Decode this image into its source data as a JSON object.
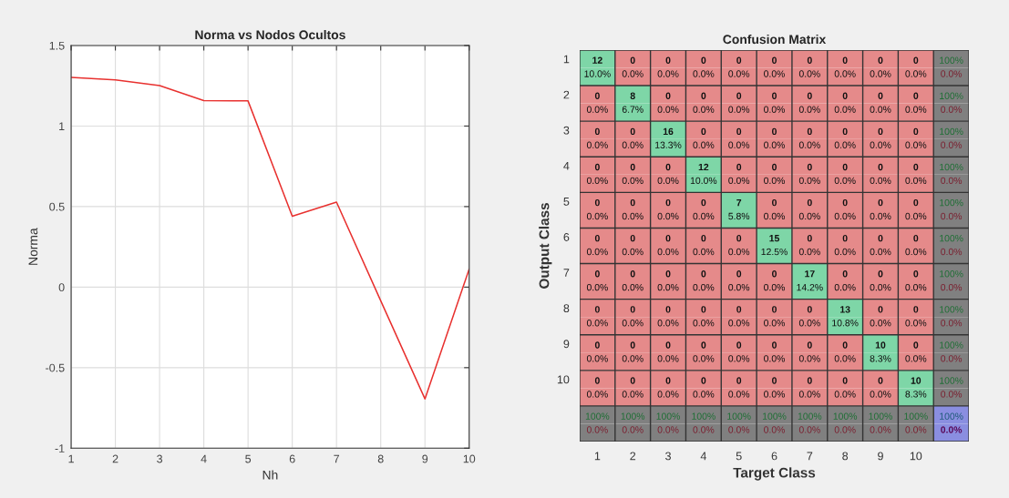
{
  "chart_data": [
    {
      "type": "line",
      "title": "Norma vs Nodos Ocultos",
      "xlabel": "Nh",
      "ylabel": "Norma",
      "x": [
        1,
        2,
        3,
        4,
        5,
        6,
        7,
        8,
        9,
        10
      ],
      "series": [
        {
          "color": "#e8312f",
          "values": [
            1.302,
            1.287,
            1.251,
            1.158,
            1.156,
            0.44,
            0.528,
            -0.085,
            -0.694,
            0.113
          ]
        }
      ],
      "xlim": [
        1,
        10
      ],
      "xticks": [
        1,
        2,
        3,
        4,
        5,
        6,
        7,
        8,
        9,
        10
      ],
      "ylim": [
        -1,
        1.5
      ],
      "yticks": [
        -1,
        -0.5,
        0,
        0.5,
        1,
        1.5
      ],
      "grid": true
    },
    {
      "type": "heatmap",
      "grid": true,
      "title": "Confusion Matrix",
      "xlabel": "Target Class",
      "ylabel": "Output Class",
      "categories": [
        "1",
        "2",
        "3",
        "4",
        "5",
        "6",
        "7",
        "8",
        "9",
        "10",
        null
      ],
      "y_categories": [
        "1",
        null,
        "2",
        null,
        "3",
        null,
        "4",
        null,
        "5",
        null,
        "6",
        null,
        "7",
        null,
        "8",
        null,
        "9",
        null,
        "10",
        null,
        null,
        null
      ],
      "cells": [
        [
          12,
          0,
          0,
          0,
          0,
          0,
          0,
          0,
          0,
          0,
          100
        ],
        [
          10.0,
          0.0,
          0.0,
          0.0,
          0.0,
          0.0,
          0.0,
          0.0,
          0.0,
          0.0,
          0.0
        ],
        [
          0,
          8,
          0,
          0,
          0,
          0,
          0,
          0,
          0,
          0,
          100
        ],
        [
          0.0,
          6.7,
          0.0,
          0.0,
          0.0,
          0.0,
          0.0,
          0.0,
          0.0,
          0.0,
          0.0
        ],
        [
          0,
          0,
          16,
          0,
          0,
          0,
          0,
          0,
          0,
          0,
          100
        ],
        [
          0.0,
          0.0,
          13.3,
          0.0,
          0.0,
          0.0,
          0.0,
          0.0,
          0.0,
          0.0,
          0.0
        ],
        [
          0,
          0,
          0,
          12,
          0,
          0,
          0,
          0,
          0,
          0,
          100
        ],
        [
          0.0,
          0.0,
          0.0,
          10.0,
          0.0,
          0.0,
          0.0,
          0.0,
          0.0,
          0.0,
          0.0
        ],
        [
          0,
          0,
          0,
          0,
          7,
          0,
          0,
          0,
          0,
          0,
          100
        ],
        [
          0.0,
          0.0,
          0.0,
          0.0,
          5.8,
          0.0,
          0.0,
          0.0,
          0.0,
          0.0,
          0.0
        ],
        [
          0,
          0,
          0,
          0,
          0,
          15,
          0,
          0,
          0,
          0,
          100
        ],
        [
          0.0,
          0.0,
          0.0,
          0.0,
          0.0,
          12.5,
          0.0,
          0.0,
          0.0,
          0.0,
          0.0
        ],
        [
          0,
          0,
          0,
          0,
          0,
          0,
          17,
          0,
          0,
          0,
          100
        ],
        [
          0.0,
          0.0,
          0.0,
          0.0,
          0.0,
          0.0,
          14.2,
          0.0,
          0.0,
          0.0,
          0.0
        ],
        [
          0,
          0,
          0,
          0,
          0,
          0,
          0,
          13,
          0,
          0,
          100
        ],
        [
          0.0,
          0.0,
          0.0,
          0.0,
          0.0,
          0.0,
          0.0,
          10.8,
          0.0,
          0.0,
          0.0
        ],
        [
          0,
          0,
          0,
          0,
          0,
          0,
          0,
          0,
          10,
          0,
          100
        ],
        [
          0.0,
          0.0,
          0.0,
          0.0,
          0.0,
          0.0,
          0.0,
          0.0,
          8.3,
          0.0,
          0.0
        ],
        [
          0,
          0,
          0,
          0,
          0,
          0,
          0,
          0,
          0,
          10,
          100
        ],
        [
          0.0,
          0.0,
          0.0,
          0.0,
          0.0,
          0.0,
          0.0,
          0.0,
          0.0,
          8.3,
          0.0
        ],
        [
          100,
          100,
          100,
          100,
          100,
          100,
          100,
          100,
          100,
          100,
          100
        ],
        [
          0.0,
          0.0,
          0.0,
          0.0,
          0.0,
          0.0,
          0.0,
          0.0,
          0.0,
          0.0,
          0.0
        ]
      ],
      "cell_labels": [
        [
          "12",
          "0",
          "0",
          "0",
          "0",
          "0",
          "0",
          "0",
          "0",
          "0",
          "100%"
        ],
        [
          "10.0%",
          "0.0%",
          "0.0%",
          "0.0%",
          "0.0%",
          "0.0%",
          "0.0%",
          "0.0%",
          "0.0%",
          "0.0%",
          "0.0%"
        ],
        [
          "0",
          "8",
          "0",
          "0",
          "0",
          "0",
          "0",
          "0",
          "0",
          "0",
          "100%"
        ],
        [
          "0.0%",
          "6.7%",
          "0.0%",
          "0.0%",
          "0.0%",
          "0.0%",
          "0.0%",
          "0.0%",
          "0.0%",
          "0.0%",
          "0.0%"
        ],
        [
          "0",
          "0",
          "16",
          "0",
          "0",
          "0",
          "0",
          "0",
          "0",
          "0",
          "100%"
        ],
        [
          "0.0%",
          "0.0%",
          "13.3%",
          "0.0%",
          "0.0%",
          "0.0%",
          "0.0%",
          "0.0%",
          "0.0%",
          "0.0%",
          "0.0%"
        ],
        [
          "0",
          "0",
          "0",
          "12",
          "0",
          "0",
          "0",
          "0",
          "0",
          "0",
          "100%"
        ],
        [
          "0.0%",
          "0.0%",
          "0.0%",
          "10.0%",
          "0.0%",
          "0.0%",
          "0.0%",
          "0.0%",
          "0.0%",
          "0.0%",
          "0.0%"
        ],
        [
          "0",
          "0",
          "0",
          "0",
          "7",
          "0",
          "0",
          "0",
          "0",
          "0",
          "100%"
        ],
        [
          "0.0%",
          "0.0%",
          "0.0%",
          "0.0%",
          "5.8%",
          "0.0%",
          "0.0%",
          "0.0%",
          "0.0%",
          "0.0%",
          "0.0%"
        ],
        [
          "0",
          "0",
          "0",
          "0",
          "0",
          "15",
          "0",
          "0",
          "0",
          "0",
          "100%"
        ],
        [
          "0.0%",
          "0.0%",
          "0.0%",
          "0.0%",
          "0.0%",
          "12.5%",
          "0.0%",
          "0.0%",
          "0.0%",
          "0.0%",
          "0.0%"
        ],
        [
          "0",
          "0",
          "0",
          "0",
          "0",
          "0",
          "17",
          "0",
          "0",
          "0",
          "100%"
        ],
        [
          "0.0%",
          "0.0%",
          "0.0%",
          "0.0%",
          "0.0%",
          "0.0%",
          "14.2%",
          "0.0%",
          "0.0%",
          "0.0%",
          "0.0%"
        ],
        [
          "0",
          "0",
          "0",
          "0",
          "0",
          "0",
          "0",
          "13",
          "0",
          "0",
          "100%"
        ],
        [
          "0.0%",
          "0.0%",
          "0.0%",
          "0.0%",
          "0.0%",
          "0.0%",
          "0.0%",
          "10.8%",
          "0.0%",
          "0.0%",
          "0.0%"
        ],
        [
          "0",
          "0",
          "0",
          "0",
          "0",
          "0",
          "0",
          "0",
          "10",
          "0",
          "100%"
        ],
        [
          "0.0%",
          "0.0%",
          "0.0%",
          "0.0%",
          "0.0%",
          "0.0%",
          "0.0%",
          "0.0%",
          "8.3%",
          "0.0%",
          "0.0%"
        ],
        [
          "0",
          "0",
          "0",
          "0",
          "0",
          "0",
          "0",
          "0",
          "0",
          "10",
          "100%"
        ],
        [
          "0.0%",
          "0.0%",
          "0.0%",
          "0.0%",
          "0.0%",
          "0.0%",
          "0.0%",
          "0.0%",
          "0.0%",
          "8.3%",
          "0.0%"
        ],
        [
          "100%",
          "100%",
          "100%",
          "100%",
          "100%",
          "100%",
          "100%",
          "100%",
          "100%",
          "100%",
          "100%"
        ],
        [
          "0.0%",
          "0.0%",
          "0.0%",
          "0.0%",
          "0.0%",
          "0.0%",
          "0.0%",
          "0.0%",
          "0.0%",
          "0.0%",
          "0.0%"
        ]
      ]
    }
  ]
}
